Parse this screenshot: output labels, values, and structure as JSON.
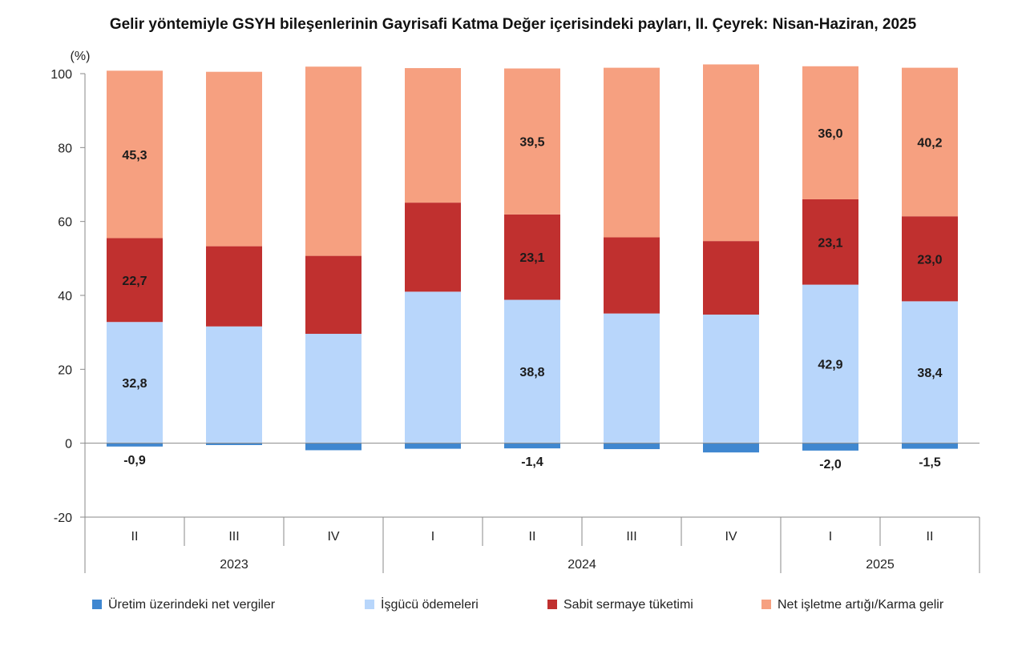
{
  "chart_data": {
    "type": "bar",
    "stacked": true,
    "title": "Gelir yöntemiyle GSYH bileşenlerinin Gayrisafi Katma Değer içerisindeki payları, II. Çeyrek: Nisan-Haziran, 2025",
    "unit": "(%)",
    "ylim": [
      -20,
      100
    ],
    "yticks": [
      -20,
      0,
      20,
      40,
      60,
      80,
      100
    ],
    "grid": false,
    "legend_position": "bottom",
    "categories": [
      "II",
      "III",
      "IV",
      "I",
      "II",
      "III",
      "IV",
      "I",
      "II"
    ],
    "groups": [
      {
        "label": "2023",
        "start": 0,
        "end": 2
      },
      {
        "label": "2024",
        "start": 3,
        "end": 6
      },
      {
        "label": "2025",
        "start": 7,
        "end": 8
      }
    ],
    "series": [
      {
        "name": "Üretim üzerindeki net vergiler",
        "color": "#3f87d0",
        "values": [
          -0.9,
          -0.5,
          -1.9,
          -1.5,
          -1.4,
          -1.6,
          -2.5,
          -2.0,
          -1.5
        ],
        "labels": [
          "-0,9",
          "",
          "",
          "",
          "-1,4",
          "",
          "",
          "-2,0",
          "-1,5"
        ]
      },
      {
        "name": "İşgücü ödemeleri",
        "color": "#b8d6fb",
        "values": [
          32.8,
          31.6,
          29.6,
          41.0,
          38.8,
          35.1,
          34.8,
          42.9,
          38.4
        ],
        "labels": [
          "32,8",
          "",
          "",
          "",
          "38,8",
          "",
          "",
          "42,9",
          "38,4"
        ]
      },
      {
        "name": "Sabit sermaye tüketimi",
        "color": "#c0302f",
        "values": [
          22.7,
          21.7,
          21.1,
          24.1,
          23.1,
          20.6,
          19.9,
          23.1,
          23.0
        ],
        "labels": [
          "22,7",
          "",
          "",
          "",
          "23,1",
          "",
          "",
          "23,1",
          "23,0"
        ]
      },
      {
        "name": "Net işletme artığı/Karma gelir",
        "color": "#f6a080",
        "values": [
          45.3,
          47.2,
          51.2,
          36.4,
          39.5,
          45.9,
          47.8,
          36.0,
          40.2
        ],
        "labels": [
          "45,3",
          "",
          "",
          "",
          "39,5",
          "",
          "",
          "36,0",
          "40,2"
        ]
      }
    ]
  }
}
